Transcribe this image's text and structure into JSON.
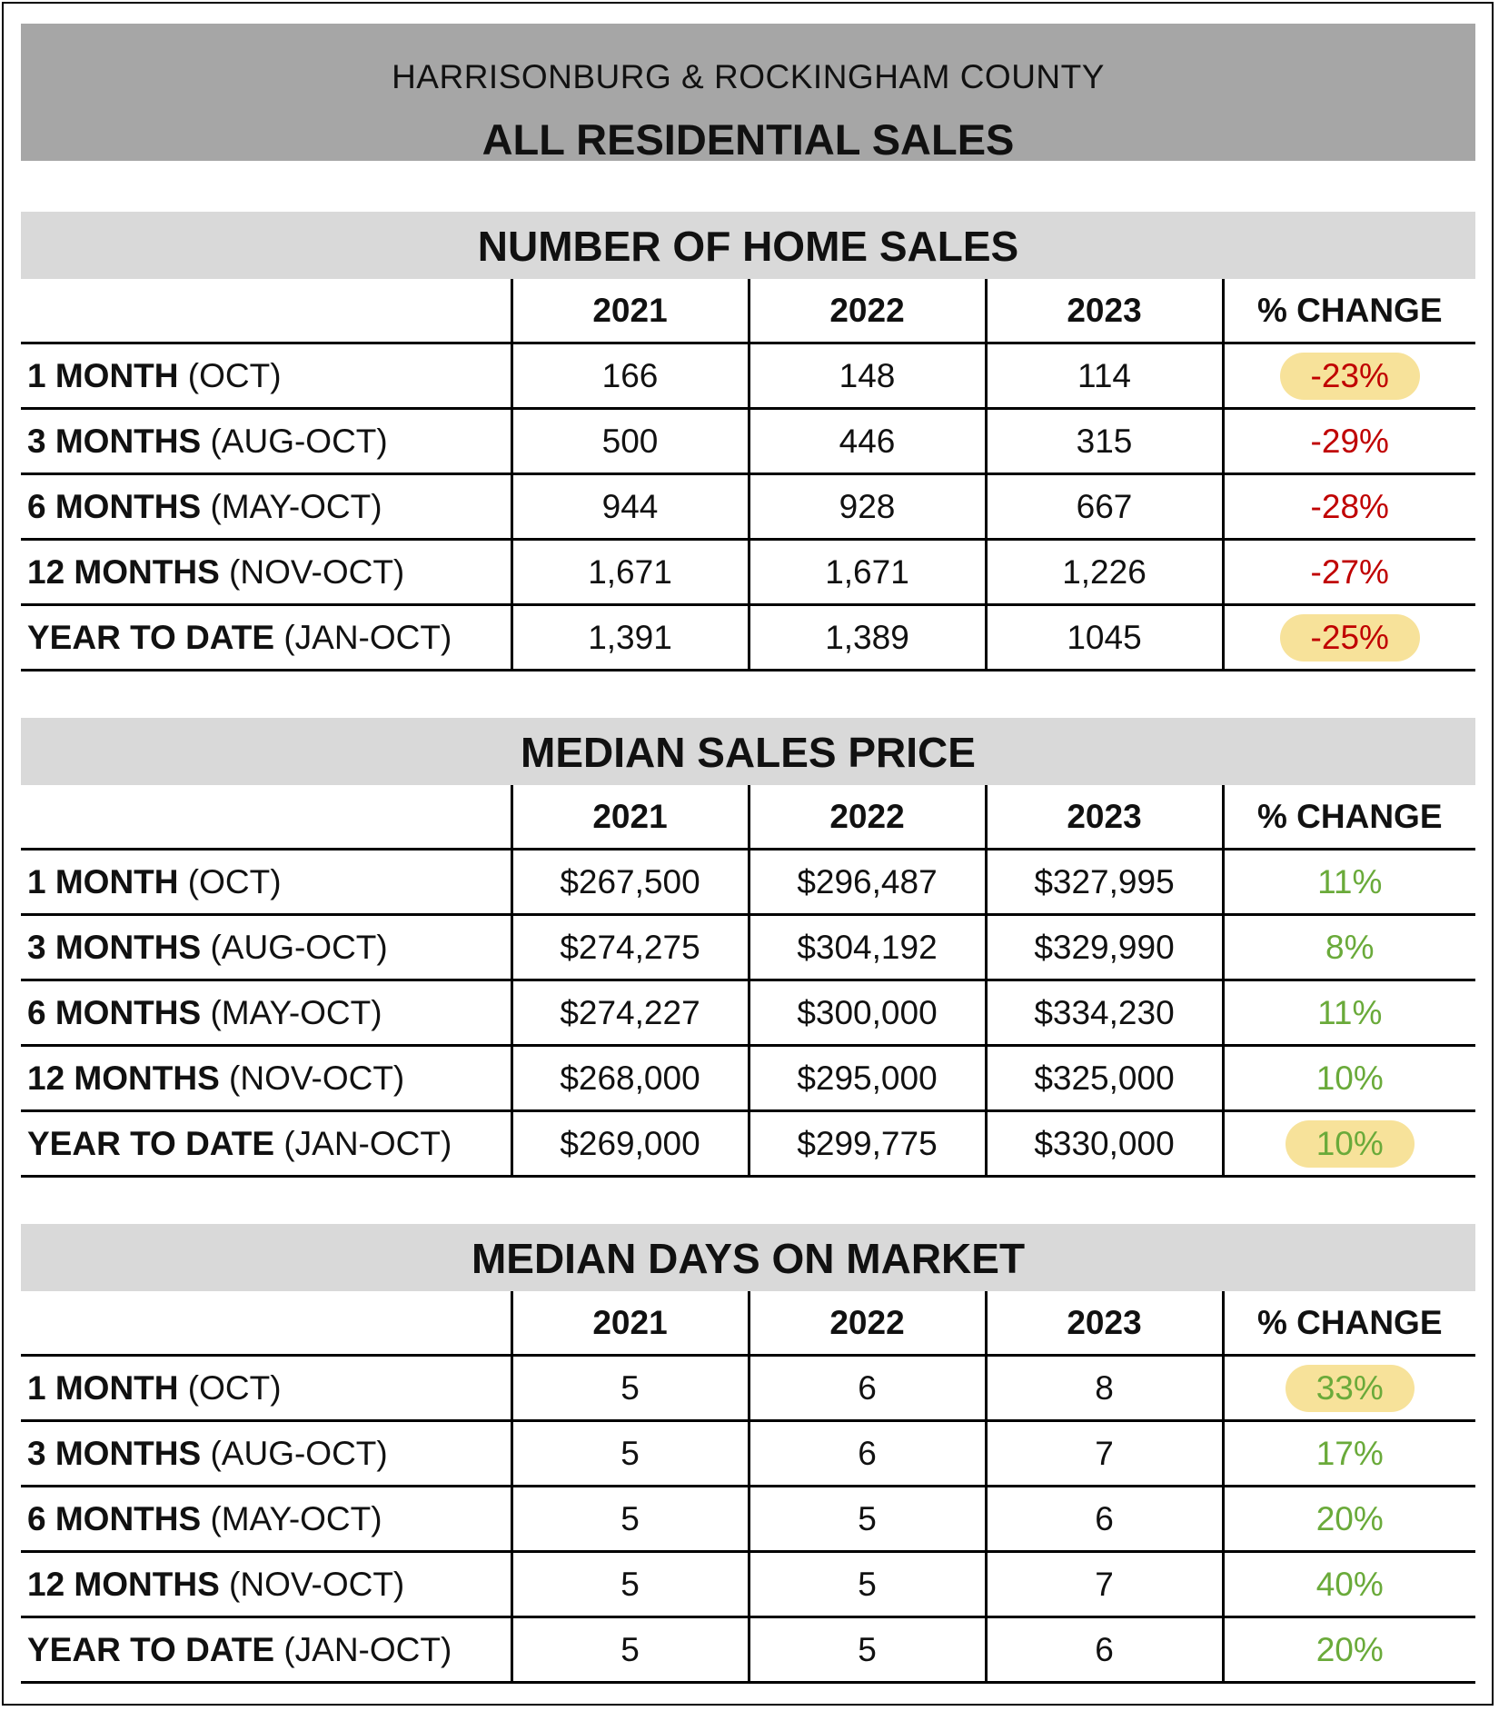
{
  "header": {
    "subtitle": "HARRISONBURG & ROCKINGHAM COUNTY",
    "title": "ALL RESIDENTIAL SALES"
  },
  "columns": [
    "2021",
    "2022",
    "2023",
    "% CHANGE"
  ],
  "colors": {
    "negative": "#c00000",
    "positive": "#6aaa3a",
    "highlight": "#f7e29a"
  },
  "sections": [
    {
      "title": "NUMBER OF HOME SALES",
      "rows": [
        {
          "period": "1 MONTH",
          "range": " (OCT)",
          "v2021": "166",
          "v2022": "148",
          "v2023": "114",
          "change": "-23%",
          "tone": "neg",
          "highlight": true
        },
        {
          "period": "3 MONTHS",
          "range": " (AUG-OCT)",
          "v2021": "500",
          "v2022": "446",
          "v2023": "315",
          "change": "-29%",
          "tone": "neg",
          "highlight": false
        },
        {
          "period": "6 MONTHS",
          "range": " (MAY-OCT)",
          "v2021": "944",
          "v2022": "928",
          "v2023": "667",
          "change": "-28%",
          "tone": "neg",
          "highlight": false
        },
        {
          "period": "12 MONTHS",
          "range": " (NOV-OCT)",
          "v2021": "1,671",
          "v2022": "1,671",
          "v2023": "1,226",
          "change": "-27%",
          "tone": "neg",
          "highlight": false
        },
        {
          "period": "YEAR TO DATE",
          "range": " (JAN-OCT)",
          "v2021": "1,391",
          "v2022": "1,389",
          "v2023": "1045",
          "change": "-25%",
          "tone": "neg",
          "highlight": true
        }
      ]
    },
    {
      "title": "MEDIAN SALES PRICE",
      "rows": [
        {
          "period": "1 MONTH",
          "range": " (OCT)",
          "v2021": "$267,500",
          "v2022": "$296,487",
          "v2023": "$327,995",
          "change": "11%",
          "tone": "pos",
          "highlight": false
        },
        {
          "period": "3 MONTHS",
          "range": " (AUG-OCT)",
          "v2021": "$274,275",
          "v2022": "$304,192",
          "v2023": "$329,990",
          "change": "8%",
          "tone": "pos",
          "highlight": false
        },
        {
          "period": "6 MONTHS",
          "range": " (MAY-OCT)",
          "v2021": "$274,227",
          "v2022": "$300,000",
          "v2023": "$334,230",
          "change": "11%",
          "tone": "pos",
          "highlight": false
        },
        {
          "period": "12 MONTHS",
          "range": " (NOV-OCT)",
          "v2021": "$268,000",
          "v2022": "$295,000",
          "v2023": "$325,000",
          "change": "10%",
          "tone": "pos",
          "highlight": false
        },
        {
          "period": "YEAR TO DATE",
          "range": " (JAN-OCT)",
          "v2021": "$269,000",
          "v2022": "$299,775",
          "v2023": "$330,000",
          "change": "10%",
          "tone": "pos",
          "highlight": true
        }
      ]
    },
    {
      "title": "MEDIAN DAYS ON MARKET",
      "rows": [
        {
          "period": "1 MONTH",
          "range": " (OCT)",
          "v2021": "5",
          "v2022": "6",
          "v2023": "8",
          "change": "33%",
          "tone": "pos",
          "highlight": true
        },
        {
          "period": "3 MONTHS",
          "range": " (AUG-OCT)",
          "v2021": "5",
          "v2022": "6",
          "v2023": "7",
          "change": "17%",
          "tone": "pos",
          "highlight": false
        },
        {
          "period": "6 MONTHS",
          "range": " (MAY-OCT)",
          "v2021": "5",
          "v2022": "5",
          "v2023": "6",
          "change": "20%",
          "tone": "pos",
          "highlight": false
        },
        {
          "period": "12 MONTHS",
          "range": " (NOV-OCT)",
          "v2021": "5",
          "v2022": "5",
          "v2023": "7",
          "change": "40%",
          "tone": "pos",
          "highlight": false
        },
        {
          "period": "YEAR TO DATE",
          "range": " (JAN-OCT)",
          "v2021": "5",
          "v2022": "5",
          "v2023": "6",
          "change": "20%",
          "tone": "pos",
          "highlight": false
        }
      ]
    }
  ]
}
